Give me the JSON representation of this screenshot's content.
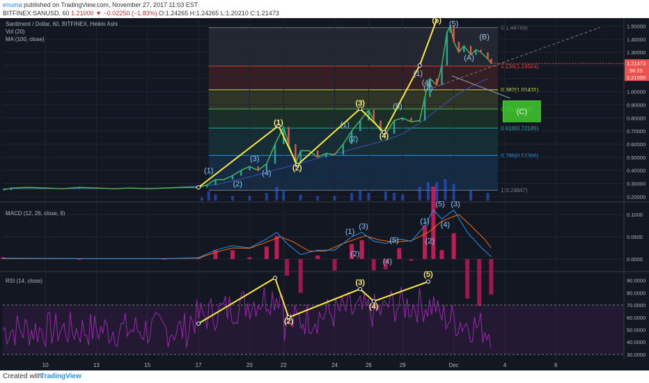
{
  "header": {
    "author": "enuma",
    "published": "published on TradingView.com, November 27, 2017 11:03 EST",
    "symbol": "BITFINEX:SANUSD, 60",
    "price": "1.21000",
    "change": "−0.02250 (−1.83%)",
    "ohlc": "O:1.24265 H:1.24265 L:1.20210 C:1.21473"
  },
  "legend": {
    "title": "Santiment / Dollar, 60, BITFINEX, Heikin Ashi",
    "vol": "Vol (20)",
    "ma": "MA (100, close)",
    "macd": "MACD (12, 26, close, 9)",
    "rsi": "RSI (14, close)"
  },
  "footer": {
    "created": "Created with",
    "brand": "TradingView"
  },
  "colors": {
    "bg": "#131722",
    "wave": "#ffeb3b",
    "macd": "#2196f3",
    "signal": "#ff6d00",
    "rsi": "#9c27b0",
    "ma": "#3f51b5",
    "target": "#43d62f"
  },
  "chart_data": {
    "type": "line",
    "x_ticks": [
      "10",
      "13",
      "15",
      "17",
      "20",
      "22",
      "24",
      "26",
      "29",
      "Dec",
      "4",
      "6"
    ],
    "x_tick_days": [
      10,
      13,
      16,
      19,
      22,
      24,
      27,
      29,
      31,
      34,
      37,
      40
    ],
    "x_range": [
      7.5,
      44
    ],
    "price": {
      "y_ticks": [
        "1.50000",
        "1.40000",
        "1.30000",
        "1.20000",
        "1.10000",
        "1.00000",
        "0.90000",
        "0.80000",
        "0.70000",
        "0.60000",
        "0.50000",
        "0.40000",
        "0.30000",
        "0.20000"
      ],
      "ylim": [
        0.17,
        1.55
      ],
      "last_price": "1.21473",
      "last_price2": "1.21000",
      "countdown": "56:25",
      "series": [
        [
          7.5,
          0.25
        ],
        [
          8,
          0.265
        ],
        [
          9,
          0.27
        ],
        [
          10,
          0.265
        ],
        [
          11,
          0.26
        ],
        [
          12,
          0.27
        ],
        [
          13,
          0.265
        ],
        [
          14,
          0.26
        ],
        [
          15,
          0.265
        ],
        [
          16,
          0.26
        ],
        [
          17,
          0.265
        ],
        [
          18,
          0.27
        ],
        [
          19,
          0.27
        ],
        [
          19.5,
          0.29
        ],
        [
          20,
          0.33
        ],
        [
          20.5,
          0.33
        ],
        [
          21,
          0.36
        ],
        [
          21.5,
          0.4
        ],
        [
          22,
          0.43
        ],
        [
          22.5,
          0.4
        ],
        [
          23,
          0.45
        ],
        [
          23.5,
          0.6
        ],
        [
          24,
          0.73
        ],
        [
          24.3,
          0.6
        ],
        [
          24.7,
          0.45
        ],
        [
          25,
          0.55
        ],
        [
          25.5,
          0.55
        ],
        [
          26,
          0.5
        ],
        [
          26.5,
          0.53
        ],
        [
          27,
          0.52
        ],
        [
          27.5,
          0.6
        ],
        [
          28,
          0.7
        ],
        [
          28.5,
          0.78
        ],
        [
          29,
          0.86
        ],
        [
          29.3,
          0.78
        ],
        [
          29.7,
          0.7
        ],
        [
          30,
          0.68
        ],
        [
          30.5,
          0.78
        ],
        [
          31,
          0.8
        ],
        [
          31.5,
          0.77
        ],
        [
          32,
          0.78
        ],
        [
          32.3,
          0.96
        ],
        [
          32.6,
          1.1
        ],
        [
          33,
          1.05
        ],
        [
          33.3,
          1.2
        ],
        [
          33.6,
          1.45
        ],
        [
          33.8,
          1.5
        ],
        [
          34,
          1.38
        ],
        [
          34.3,
          1.3
        ],
        [
          34.6,
          1.35
        ],
        [
          35,
          1.28
        ],
        [
          35.3,
          1.32
        ],
        [
          35.6,
          1.3
        ],
        [
          36,
          1.25
        ],
        [
          36.2,
          1.215
        ]
      ],
      "ma_series": [
        [
          7.5,
          0.26
        ],
        [
          12,
          0.26
        ],
        [
          17,
          0.265
        ],
        [
          20,
          0.29
        ],
        [
          22,
          0.35
        ],
        [
          24,
          0.42
        ],
        [
          26,
          0.49
        ],
        [
          28,
          0.56
        ],
        [
          30,
          0.63
        ],
        [
          31,
          0.68
        ],
        [
          32,
          0.76
        ],
        [
          33,
          0.86
        ],
        [
          34,
          0.96
        ],
        [
          35,
          1.04
        ],
        [
          36,
          1.1
        ]
      ],
      "fib_levels": [
        {
          "label": "0(1.48769)",
          "value": 1.48769,
          "color": "#787b86"
        },
        {
          "label": "0.236(1.19524)",
          "value": 1.19524,
          "color": "#f44336"
        },
        {
          "label": "0.382(1.01431)",
          "value": 1.01431,
          "color": "#cddc39"
        },
        {
          "label": "0.5(0.86808)",
          "value": 0.86808,
          "color": "#4caf50"
        },
        {
          "label": "0.618(0.72185)",
          "value": 0.72185,
          "color": "#26a69a"
        },
        {
          "label": "0.786(0.51366)",
          "value": 0.51366,
          "color": "#2196f3"
        },
        {
          "label": "1(0.24847)",
          "value": 0.24847,
          "color": "#787b86"
        }
      ],
      "fib_x_range": [
        19.6,
        36.6
      ],
      "wave_line": [
        [
          19.0,
          0.27
        ],
        [
          23.7,
          0.74
        ],
        [
          24.8,
          0.44
        ],
        [
          28.5,
          0.87
        ],
        [
          29.9,
          0.69
        ],
        [
          32.0,
          1.2
        ],
        [
          33.0,
          1.55
        ]
      ],
      "wave_labels_yellow": [
        {
          "text": "(1)",
          "x": 23.7,
          "y": 0.745
        },
        {
          "text": "(2)",
          "x": 24.8,
          "y": 0.4
        },
        {
          "text": "(3)",
          "x": 28.5,
          "y": 0.895
        },
        {
          "text": "(4)",
          "x": 29.9,
          "y": 0.645
        },
        {
          "text": "(5)",
          "x": 33.0,
          "y": 1.525
        }
      ],
      "wave_labels_blue": [
        {
          "text": "(1)",
          "x": 19.6,
          "y": 0.38
        },
        {
          "text": "(2)",
          "x": 21.3,
          "y": 0.28
        },
        {
          "text": "(3)",
          "x": 22.3,
          "y": 0.47
        },
        {
          "text": "(4)",
          "x": 23.0,
          "y": 0.36
        },
        {
          "text": "(1)",
          "x": 27.6,
          "y": 0.73
        },
        {
          "text": "(2)",
          "x": 28.1,
          "y": 0.62
        },
        {
          "text": "(5)",
          "x": 30.7,
          "y": 0.87
        },
        {
          "text": "(1)",
          "x": 31.9,
          "y": 1.12
        },
        {
          "text": "(2)",
          "x": 32.5,
          "y": 1.01
        },
        {
          "text": "(4)",
          "x": 32.4,
          "y": 1.05
        },
        {
          "text": "(5)",
          "x": 34.0,
          "y": 1.5
        },
        {
          "text": "(A)",
          "x": 34.9,
          "y": 1.24
        },
        {
          "text": "(B)",
          "x": 35.8,
          "y": 1.4
        }
      ],
      "projection": [
        [
          33.9,
          1.12
        ],
        [
          37.3,
          0.95
        ]
      ],
      "target": {
        "label": "(C)",
        "x0": 36.9,
        "x1": 39.1,
        "y0": 0.77,
        "y1": 0.93
      },
      "dashed_line": [
        [
          32.8,
          1.03
        ],
        [
          42.6,
          1.49
        ]
      ],
      "volume": [
        [
          19.2,
          0.02
        ],
        [
          19.6,
          0.06
        ],
        [
          20,
          0.04
        ],
        [
          21,
          0.03
        ],
        [
          22,
          0.03
        ],
        [
          23,
          0.05
        ],
        [
          23.6,
          0.09
        ],
        [
          24,
          0.07
        ],
        [
          25,
          0.04
        ],
        [
          26,
          0.03
        ],
        [
          27,
          0.03
        ],
        [
          28,
          0.05
        ],
        [
          28.5,
          0.07
        ],
        [
          29,
          0.05
        ],
        [
          30,
          0.06
        ],
        [
          30.5,
          0.05
        ],
        [
          31,
          0.04
        ],
        [
          32,
          0.09
        ],
        [
          32.5,
          0.12
        ],
        [
          33,
          0.12
        ],
        [
          33.5,
          0.14
        ],
        [
          34,
          0.11
        ],
        [
          35,
          0.07
        ],
        [
          36,
          0.05
        ]
      ]
    },
    "macd": {
      "y_ticks": [
        "0.1000",
        "0.0500",
        "0.0000"
      ],
      "ylim": [
        -0.025,
        0.125
      ],
      "macd_series": [
        [
          7.5,
          0.002
        ],
        [
          12,
          0.001
        ],
        [
          17,
          0.001
        ],
        [
          19,
          0.003
        ],
        [
          20,
          0.02
        ],
        [
          21,
          0.03
        ],
        [
          22,
          0.025
        ],
        [
          23,
          0.045
        ],
        [
          23.6,
          0.06
        ],
        [
          24.2,
          0.035
        ],
        [
          25,
          0.01
        ],
        [
          26,
          0.02
        ],
        [
          27,
          0.02
        ],
        [
          28,
          0.05
        ],
        [
          28.6,
          0.06
        ],
        [
          29.3,
          0.04
        ],
        [
          30,
          0.035
        ],
        [
          30.8,
          0.045
        ],
        [
          31.5,
          0.04
        ],
        [
          32.3,
          0.075
        ],
        [
          32.8,
          0.11
        ],
        [
          33.3,
          0.09
        ],
        [
          34,
          0.11
        ],
        [
          34.8,
          0.06
        ],
        [
          35.5,
          0.03
        ],
        [
          36.2,
          0.005
        ]
      ],
      "signal_series": [
        [
          7.5,
          0.001
        ],
        [
          17,
          0.001
        ],
        [
          19,
          0.002
        ],
        [
          20,
          0.015
        ],
        [
          21,
          0.025
        ],
        [
          22,
          0.024
        ],
        [
          23,
          0.038
        ],
        [
          23.8,
          0.05
        ],
        [
          24.5,
          0.04
        ],
        [
          25.5,
          0.018
        ],
        [
          26.5,
          0.018
        ],
        [
          27.5,
          0.035
        ],
        [
          28.8,
          0.052
        ],
        [
          29.6,
          0.043
        ],
        [
          30.5,
          0.038
        ],
        [
          31.5,
          0.041
        ],
        [
          32.5,
          0.06
        ],
        [
          33.3,
          0.085
        ],
        [
          34.3,
          0.1
        ],
        [
          35,
          0.075
        ],
        [
          35.8,
          0.045
        ],
        [
          36.2,
          0.025
        ]
      ],
      "labels": [
        {
          "text": "(1)",
          "x": 27.9,
          "y": 0.056
        },
        {
          "text": "(3)",
          "x": 28.7,
          "y": 0.068
        },
        {
          "text": "(2)",
          "x": 28.2,
          "y": 0.006
        },
        {
          "text": "(5)",
          "x": 30.5,
          "y": 0.037
        },
        {
          "text": "(4)",
          "x": 30.1,
          "y": -0.011
        },
        {
          "text": "(1)",
          "x": 32.3,
          "y": 0.08
        },
        {
          "text": "(2)",
          "x": 32.6,
          "y": 0.035
        },
        {
          "text": "(4)",
          "x": 33.5,
          "y": 0.072
        },
        {
          "text": "(5)",
          "x": 33.2,
          "y": 0.118
        },
        {
          "text": "(3)",
          "x": 34.1,
          "y": 0.118
        }
      ]
    },
    "rsi": {
      "y_ticks": [
        "90.0000",
        "80.0000",
        "70.0000",
        "60.0000",
        "50.0000",
        "40.0000",
        "30.0000"
      ],
      "ylim": [
        26,
        96
      ],
      "band": [
        30,
        70
      ],
      "wave_line": [
        [
          19.0,
          55
        ],
        [
          23.5,
          92
        ],
        [
          24.3,
          60
        ],
        [
          28.5,
          83
        ],
        [
          29.3,
          73
        ],
        [
          32.5,
          89
        ]
      ],
      "wave_labels": [
        {
          "text": "(2)",
          "x": 24.3,
          "y": 55
        },
        {
          "text": "(3)",
          "x": 28.5,
          "y": 86.5
        },
        {
          "text": "(4)",
          "x": 29.3,
          "y": 67
        },
        {
          "text": "(5)",
          "x": 32.5,
          "y": 93
        }
      ]
    }
  }
}
